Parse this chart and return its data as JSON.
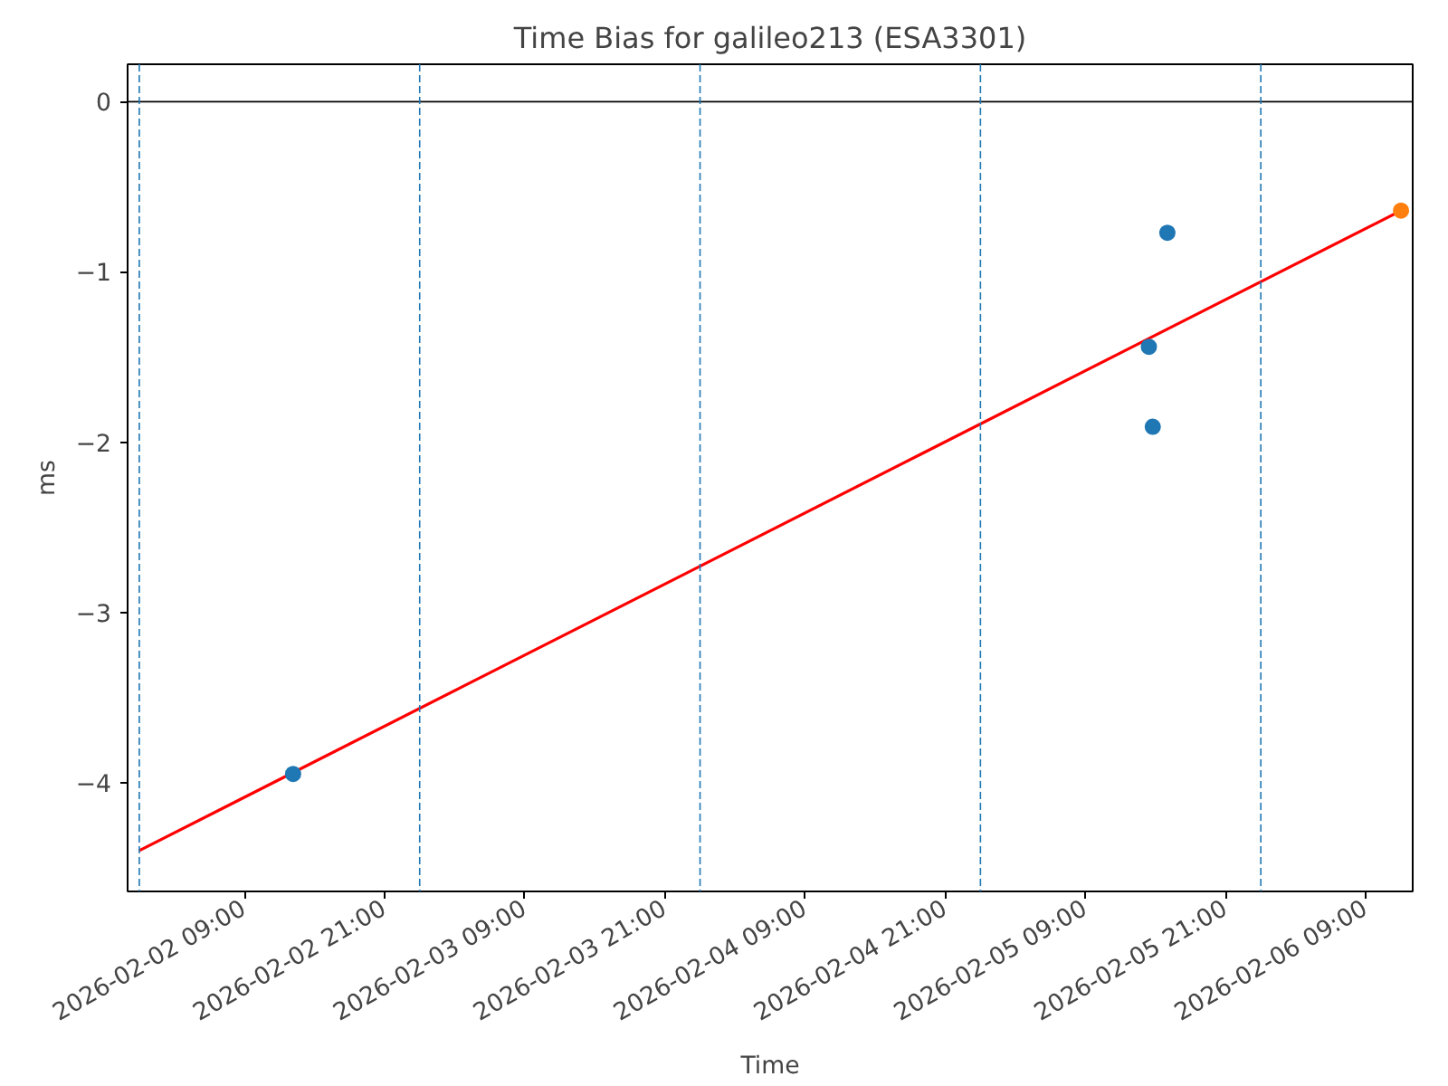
{
  "chart_data": {
    "type": "scatter",
    "title": "Time Bias for galileo213 (ESA3301)",
    "xlabel": "Time",
    "ylabel": "ms",
    "xlim": [
      "2026-02-01T23:00",
      "2026-02-06T13:00"
    ],
    "ylim": [
      -4.64,
      0.22
    ],
    "xticks": [
      {
        "value": "2026-02-02T09:00",
        "label": "2026-02-02 09:00"
      },
      {
        "value": "2026-02-02T21:00",
        "label": "2026-02-02 21:00"
      },
      {
        "value": "2026-02-03T09:00",
        "label": "2026-02-03 09:00"
      },
      {
        "value": "2026-02-03T21:00",
        "label": "2026-02-03 21:00"
      },
      {
        "value": "2026-02-04T09:00",
        "label": "2026-02-04 09:00"
      },
      {
        "value": "2026-02-04T21:00",
        "label": "2026-02-04 21:00"
      },
      {
        "value": "2026-02-05T09:00",
        "label": "2026-02-05 09:00"
      },
      {
        "value": "2026-02-05T21:00",
        "label": "2026-02-05 21:00"
      },
      {
        "value": "2026-02-06T09:00",
        "label": "2026-02-06 09:00"
      }
    ],
    "yticks": [
      {
        "value": -4,
        "label": "−4"
      },
      {
        "value": -3,
        "label": "−3"
      },
      {
        "value": -2,
        "label": "−2"
      },
      {
        "value": -1,
        "label": "−1"
      },
      0
    ],
    "marker": "circle",
    "grid": false,
    "series": [
      {
        "type": "line",
        "marker": "none",
        "color": "#ff0000",
        "x": [
          "2026-02-02T00:00",
          "2026-02-06T12:00"
        ],
        "values": [
          -4.4,
          -0.64
        ]
      },
      {
        "type": "scatter",
        "color": "#1f77b4",
        "x": [
          "2026-02-02T13:10",
          "2026-02-05T14:25",
          "2026-02-05T14:45",
          "2026-02-05T16:00"
        ],
        "values": [
          -3.95,
          -1.44,
          -1.91,
          -0.77
        ]
      },
      {
        "type": "scatter",
        "color": "#ff7f0e",
        "x": [
          "2026-02-06T12:00"
        ],
        "values": [
          -0.64
        ]
      }
    ],
    "ref_lines": [
      {
        "axis": "y",
        "value": 0,
        "color": "#000000",
        "line_style": "solid"
      },
      {
        "axis": "x",
        "value": "2026-02-02T00:00",
        "color": "#1f77b4",
        "line_style": "dashed"
      },
      {
        "axis": "x",
        "value": "2026-02-03T00:00",
        "color": "#1f77b4",
        "line_style": "dashed"
      },
      {
        "axis": "x",
        "value": "2026-02-04T00:00",
        "color": "#1f77b4",
        "line_style": "dashed"
      },
      {
        "axis": "x",
        "value": "2026-02-05T00:00",
        "color": "#1f77b4",
        "line_style": "dashed"
      },
      {
        "axis": "x",
        "value": "2026-02-06T00:00",
        "color": "#1f77b4",
        "line_style": "dashed"
      }
    ]
  }
}
